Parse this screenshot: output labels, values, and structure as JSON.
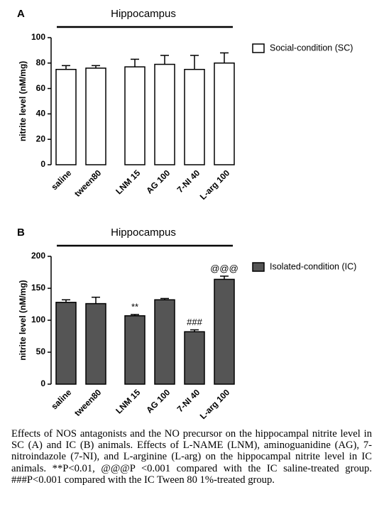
{
  "chart_data": [
    {
      "type": "bar",
      "panel": "A",
      "title": "Hippocampus",
      "ylabel": "nitrite level (nM/mg)",
      "categories": [
        "saline",
        "tween80",
        "LNM 15",
        "AG 100",
        "7-NI 40",
        "L-arg 100"
      ],
      "series": [
        {
          "name": "Social-condition (SC)",
          "color": "#ffffff",
          "values": [
            75,
            76,
            77,
            79,
            75,
            80
          ],
          "errors": [
            3,
            2,
            6,
            7,
            11,
            8
          ]
        }
      ],
      "annotations": [
        null,
        null,
        null,
        null,
        null,
        null
      ],
      "ylim": [
        0,
        100
      ],
      "yticks": [
        0,
        20,
        40,
        60,
        80,
        100
      ]
    },
    {
      "type": "bar",
      "panel": "B",
      "title": "Hippocampus",
      "ylabel": "nitrite level (nM/mg)",
      "categories": [
        "saline",
        "tween80",
        "LNM 15",
        "AG 100",
        "7-NI 40",
        "L-arg 100"
      ],
      "series": [
        {
          "name": "Isolated-condition (IC)",
          "color": "#555555",
          "values": [
            128,
            126,
            107,
            132,
            82,
            164
          ],
          "errors": [
            4,
            10,
            2,
            2,
            3,
            5
          ]
        }
      ],
      "annotations": [
        null,
        null,
        "**",
        null,
        "###",
        "@@@"
      ],
      "ylim": [
        0,
        200
      ],
      "yticks": [
        0,
        50,
        100,
        150,
        200
      ]
    }
  ],
  "caption": "Effects of NOS antagonists and the NO precursor on the hippocampal nitrite level in SC (A) and IC (B) animals. Effects of L-NAME (LNM), aminoguanidine (AG), 7-nitroindazole (7-NI), and L-arginine (L-arg) on the hippocampal nitrite level in IC animals. **P<0.01, @@@P <0.001 compared with the IC saline-treated group. ###P<0.001 compared with the IC Tween 80 1%-treated group."
}
